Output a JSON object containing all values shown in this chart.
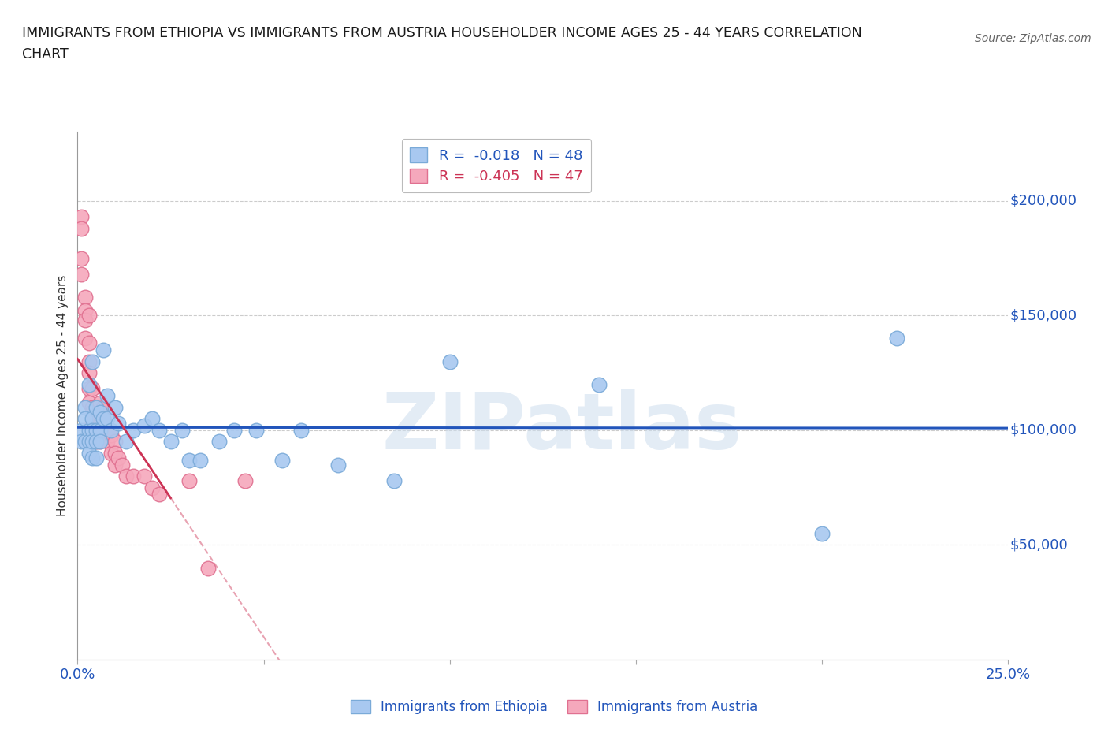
{
  "title_line1": "IMMIGRANTS FROM ETHIOPIA VS IMMIGRANTS FROM AUSTRIA HOUSEHOLDER INCOME AGES 25 - 44 YEARS CORRELATION",
  "title_line2": "CHART",
  "source": "Source: ZipAtlas.com",
  "ylabel": "Householder Income Ages 25 - 44 years",
  "xlim": [
    0.0,
    0.25
  ],
  "ylim": [
    0,
    230000
  ],
  "ytick_labels": [
    "$50,000",
    "$100,000",
    "$150,000",
    "$200,000"
  ],
  "ytick_values": [
    50000,
    100000,
    150000,
    200000
  ],
  "ethiopia_color": "#A8C8F0",
  "ethiopia_edge": "#7AAAD8",
  "austria_color": "#F5A8BC",
  "austria_edge": "#E07090",
  "ethiopia_R": "-0.018",
  "ethiopia_N": "48",
  "austria_R": "-0.405",
  "austria_N": "47",
  "ethiopia_x": [
    0.001,
    0.001,
    0.002,
    0.002,
    0.002,
    0.003,
    0.003,
    0.003,
    0.003,
    0.004,
    0.004,
    0.004,
    0.004,
    0.004,
    0.005,
    0.005,
    0.005,
    0.005,
    0.006,
    0.006,
    0.006,
    0.007,
    0.007,
    0.008,
    0.008,
    0.009,
    0.01,
    0.011,
    0.013,
    0.015,
    0.018,
    0.02,
    0.022,
    0.025,
    0.028,
    0.03,
    0.033,
    0.038,
    0.042,
    0.048,
    0.055,
    0.06,
    0.07,
    0.085,
    0.1,
    0.14,
    0.2,
    0.22
  ],
  "ethiopia_y": [
    100000,
    95000,
    110000,
    105000,
    95000,
    120000,
    100000,
    95000,
    90000,
    130000,
    105000,
    100000,
    95000,
    88000,
    110000,
    100000,
    95000,
    88000,
    108000,
    100000,
    95000,
    135000,
    105000,
    115000,
    105000,
    100000,
    110000,
    103000,
    95000,
    100000,
    102000,
    105000,
    100000,
    95000,
    100000,
    87000,
    87000,
    95000,
    100000,
    100000,
    87000,
    100000,
    85000,
    78000,
    130000,
    120000,
    55000,
    140000
  ],
  "austria_x": [
    0.001,
    0.001,
    0.001,
    0.001,
    0.002,
    0.002,
    0.002,
    0.002,
    0.003,
    0.003,
    0.003,
    0.003,
    0.003,
    0.003,
    0.004,
    0.004,
    0.004,
    0.004,
    0.005,
    0.005,
    0.005,
    0.005,
    0.006,
    0.006,
    0.006,
    0.006,
    0.006,
    0.007,
    0.007,
    0.007,
    0.008,
    0.008,
    0.009,
    0.009,
    0.01,
    0.01,
    0.01,
    0.011,
    0.012,
    0.013,
    0.015,
    0.018,
    0.02,
    0.022,
    0.03,
    0.035,
    0.045
  ],
  "austria_y": [
    193000,
    188000,
    175000,
    168000,
    158000,
    152000,
    148000,
    140000,
    150000,
    138000,
    130000,
    125000,
    118000,
    112000,
    118000,
    110000,
    108000,
    103000,
    110000,
    105000,
    100000,
    95000,
    112000,
    108000,
    103000,
    100000,
    95000,
    110000,
    105000,
    100000,
    100000,
    95000,
    98000,
    90000,
    95000,
    90000,
    85000,
    88000,
    85000,
    80000,
    80000,
    80000,
    75000,
    72000,
    78000,
    40000,
    78000
  ],
  "watermark": "ZIPatlas",
  "grid_color": "#CCCCCC",
  "trend_blue_color": "#2255BB",
  "trend_pink_color": "#CC3355",
  "legend_blue_label": "Immigrants from Ethiopia",
  "legend_pink_label": "Immigrants from Austria",
  "background_color": "#FFFFFF"
}
